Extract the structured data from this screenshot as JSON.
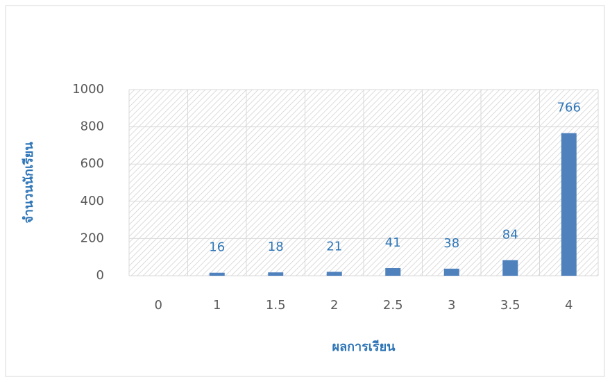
{
  "chart_data": {
    "type": "bar",
    "y_label": "จำนวนนักเรียน",
    "x_label": "ผลการเรียน",
    "categories": [
      "0",
      "1",
      "1.5",
      "2",
      "2.5",
      "3",
      "3.5",
      "4"
    ],
    "values": [
      null,
      16,
      18,
      21,
      41,
      38,
      84,
      766
    ],
    "color": "#4f81bd",
    "ylim": [
      0,
      1000
    ],
    "yticks": [
      0,
      200,
      400,
      600,
      800,
      1000
    ],
    "grid": true
  }
}
